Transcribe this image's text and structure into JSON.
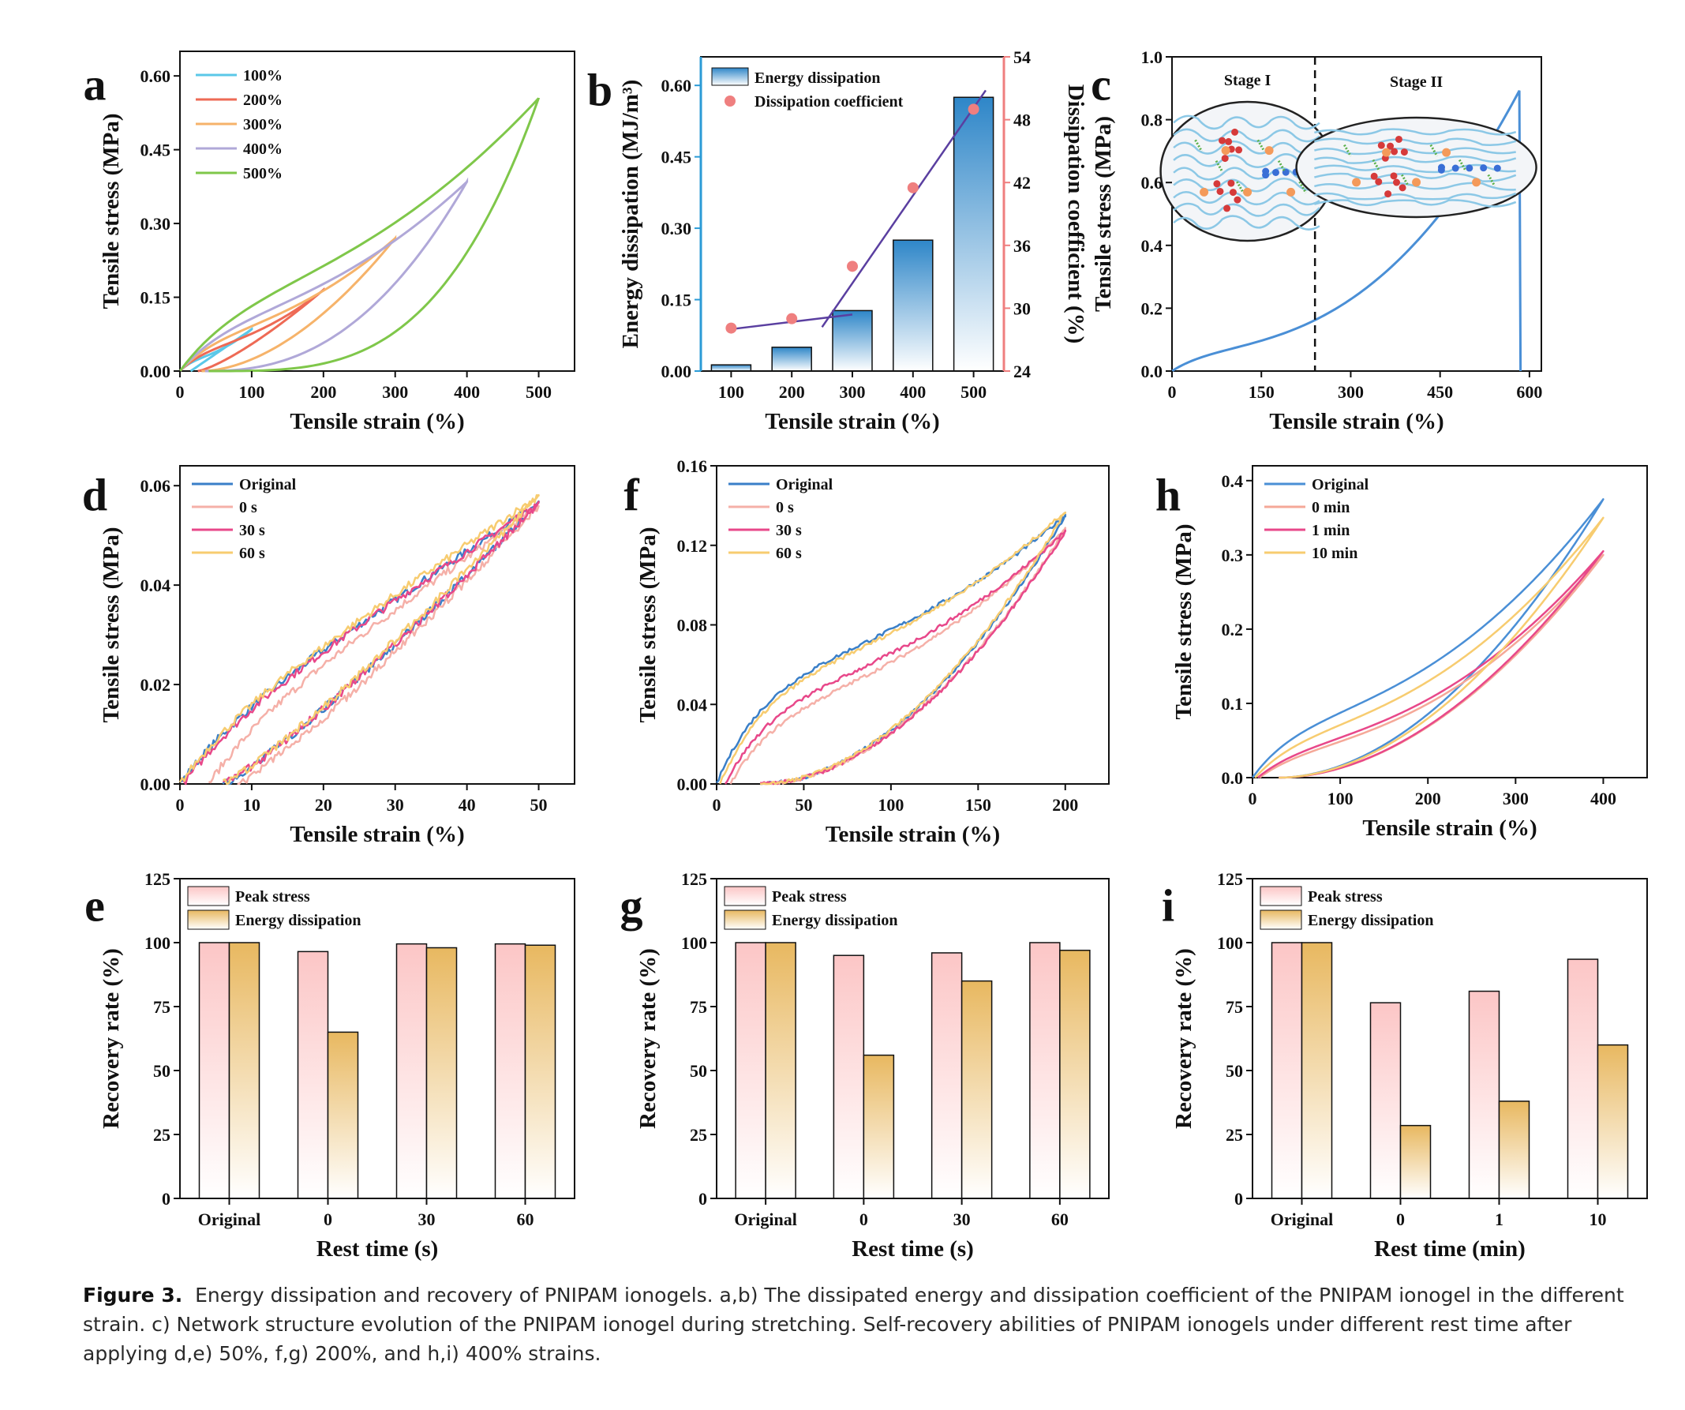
{
  "caption": {
    "label": "Figure 3.",
    "text": "Energy dissipation and recovery of PNIPAM ionogels. a,b) The dissipated energy and dissipation coefficient of the PNIPAM ionogel in the different strain. c) Network structure evolution of the PNIPAM ionogel during stretching. Self-recovery abilities of PNIPAM ionogels under different rest time after applying d,e) 50%, f,g) 200%, and h,i) 400% strains."
  },
  "chart_data": [
    {
      "panel": "a",
      "type": "line",
      "xlabel": "Tensile strain (%)",
      "ylabel": "Tensile stress (MPa)",
      "xlim": [
        0,
        550
      ],
      "ylim": [
        0,
        0.65
      ],
      "xticks": [
        0,
        100,
        200,
        300,
        400,
        500
      ],
      "yticks": [
        0.0,
        0.15,
        0.3,
        0.45,
        0.6
      ],
      "ytick_labels": [
        "0.00",
        "0.15",
        "0.30",
        "0.45",
        "0.60"
      ],
      "legend_position": "top-left",
      "series": [
        {
          "name": "100%",
          "color": "#5bc8e8",
          "max_strain": 100,
          "peak": 0.085,
          "residual": 15,
          "exp": 1.0
        },
        {
          "name": "200%",
          "color": "#ee6a55",
          "max_strain": 200,
          "peak": 0.165,
          "residual": 25,
          "exp": 1.3
        },
        {
          "name": "300%",
          "color": "#f6b36a",
          "max_strain": 300,
          "peak": 0.27,
          "residual": 30,
          "exp": 1.8
        },
        {
          "name": "400%",
          "color": "#b0a8d8",
          "max_strain": 400,
          "peak": 0.385,
          "residual": 35,
          "exp": 2.4
        },
        {
          "name": "500%",
          "color": "#7fc74a",
          "max_strain": 500,
          "peak": 0.555,
          "residual": 40,
          "exp": 3.4
        }
      ]
    },
    {
      "panel": "b",
      "type": "bar",
      "xlabel": "Tensile strain (%)",
      "ylabel": "Energy dissipation (MJ/m³)",
      "ylabel_right": "Dissipation coefficient (%)",
      "categories": [
        "100",
        "200",
        "300",
        "400",
        "500"
      ],
      "series": [
        {
          "name": "Energy dissipation",
          "axis": "left",
          "values": [
            0.013,
            0.05,
            0.127,
            0.275,
            0.575
          ]
        },
        {
          "name": "Dissipation coefficient",
          "axis": "right",
          "values": [
            28.1,
            29.0,
            34.0,
            41.5,
            49.0
          ]
        }
      ],
      "ylim": [
        0,
        0.66
      ],
      "ylim_right": [
        24,
        54
      ],
      "yticks": [
        0.0,
        0.15,
        0.3,
        0.45,
        0.6
      ],
      "ytick_labels": [
        "0.00",
        "0.15",
        "0.30",
        "0.45",
        "0.60"
      ],
      "yticks_right": [
        24,
        30,
        36,
        42,
        48,
        54
      ],
      "fit_lines": [
        {
          "x": [
            100,
            300
          ],
          "y": [
            28.0,
            29.4
          ]
        },
        {
          "x": [
            250,
            520
          ],
          "y": [
            28.2,
            50.8
          ]
        }
      ],
      "colors": {
        "bar": "#2e86c8",
        "dot": "#ef7f7f",
        "line": "#5a3fa0",
        "left_axis": "#2b9bd6",
        "right_axis": "#ef7f7f"
      }
    },
    {
      "panel": "c",
      "type": "line",
      "xlabel": "Tensile strain (%)",
      "ylabel": "Tensile stress (MPa)",
      "xlim": [
        0,
        620
      ],
      "ylim": [
        0,
        1.0
      ],
      "xticks": [
        0,
        150,
        300,
        450,
        600
      ],
      "yticks": [
        0.0,
        0.2,
        0.4,
        0.6,
        0.8,
        1.0
      ],
      "series": [
        {
          "name": "",
          "color": "#4a8fd6",
          "break_strain": 583,
          "peak": 0.85
        }
      ],
      "annotations": [
        "Stage I",
        "Stage II"
      ],
      "stage_divider_strain": 240
    },
    {
      "panel": "d",
      "type": "line",
      "xlabel": "Tensile strain (%)",
      "ylabel": "Tensile stress (MPa)",
      "xlim": [
        0,
        55
      ],
      "ylim": [
        0,
        0.064
      ],
      "xticks": [
        0,
        10,
        20,
        30,
        40,
        50
      ],
      "yticks": [
        0.0,
        0.02,
        0.04,
        0.06
      ],
      "ytick_labels": [
        "0.00",
        "0.02",
        "0.04",
        "0.06"
      ],
      "legend_position": "top-left",
      "series": [
        {
          "name": "Original",
          "color": "#3a7fc8",
          "peak": 0.0565,
          "residual": 6,
          "offset": 0
        },
        {
          "name": "0 s",
          "color": "#f5b0a8",
          "peak": 0.056,
          "residual": 8,
          "offset": 4
        },
        {
          "name": "30 s",
          "color": "#e8488a",
          "peak": 0.0565,
          "residual": 6,
          "offset": 0.5
        },
        {
          "name": "60 s",
          "color": "#f7cc70",
          "peak": 0.058,
          "residual": 6,
          "offset": 0
        }
      ]
    },
    {
      "panel": "f",
      "type": "line",
      "xlabel": "Tensile strain (%)",
      "ylabel": "Tensile stress (MPa)",
      "xlim": [
        0,
        225
      ],
      "ylim": [
        0,
        0.16
      ],
      "xticks": [
        0,
        50,
        100,
        150,
        200
      ],
      "yticks": [
        0.0,
        0.04,
        0.08,
        0.12,
        0.16
      ],
      "ytick_labels": [
        "0.00",
        "0.04",
        "0.08",
        "0.12",
        "0.16"
      ],
      "legend_position": "top-left",
      "series": [
        {
          "name": "Original",
          "color": "#3a7fc8",
          "peak": 0.135,
          "residual": 25,
          "offset": 0,
          "k": 1.0
        },
        {
          "name": "0 s",
          "color": "#f5b0a8",
          "peak": 0.128,
          "residual": 25,
          "offset": 8,
          "k": 0.75
        },
        {
          "name": "30 s",
          "color": "#e8488a",
          "peak": 0.127,
          "residual": 25,
          "offset": 5,
          "k": 0.85
        },
        {
          "name": "60 s",
          "color": "#f7cc70",
          "peak": 0.137,
          "residual": 25,
          "offset": 2,
          "k": 0.95
        }
      ]
    },
    {
      "panel": "h",
      "type": "line",
      "xlabel": "Tensile strain (%)",
      "ylabel": "Tensile stress (MPa)",
      "xlim": [
        0,
        450
      ],
      "ylim": [
        0,
        0.42
      ],
      "xticks": [
        0,
        100,
        200,
        300,
        400
      ],
      "yticks": [
        0.0,
        0.1,
        0.2,
        0.3,
        0.4
      ],
      "legend_position": "top-left",
      "series": [
        {
          "name": "Original",
          "color": "#4a8fd6",
          "peak": 0.375,
          "residual": 30,
          "offset": 0,
          "k": 1.0
        },
        {
          "name": "0 min",
          "color": "#f5a898",
          "peak": 0.3,
          "residual": 30,
          "offset": 8,
          "k": 0.65
        },
        {
          "name": "1 min",
          "color": "#e8488a",
          "peak": 0.305,
          "residual": 30,
          "offset": 6,
          "k": 0.72
        },
        {
          "name": "10 min",
          "color": "#f7cc70",
          "peak": 0.35,
          "residual": 30,
          "offset": 3,
          "k": 0.85
        }
      ]
    },
    {
      "panel": "e",
      "type": "bar",
      "xlabel": "Rest time (s)",
      "ylabel": "Recovery rate (%)",
      "categories": [
        "Original",
        "0",
        "30",
        "60"
      ],
      "ylim": [
        0,
        125
      ],
      "yticks": [
        0,
        25,
        50,
        75,
        100,
        125
      ],
      "series": [
        {
          "name": "Peak stress",
          "values": [
            100,
            96.5,
            99.5,
            99.5
          ]
        },
        {
          "name": "Energy dissipation",
          "values": [
            100,
            65,
            98,
            99
          ]
        }
      ]
    },
    {
      "panel": "g",
      "type": "bar",
      "xlabel": "Rest time (s)",
      "ylabel": "Recovery rate (%)",
      "categories": [
        "Original",
        "0",
        "30",
        "60"
      ],
      "ylim": [
        0,
        125
      ],
      "yticks": [
        0,
        25,
        50,
        75,
        100,
        125
      ],
      "series": [
        {
          "name": "Peak stress",
          "values": [
            100,
            95,
            96,
            100
          ]
        },
        {
          "name": "Energy dissipation",
          "values": [
            100,
            56,
            85,
            97
          ]
        }
      ]
    },
    {
      "panel": "i",
      "type": "bar",
      "xlabel": "Rest time (min)",
      "ylabel": "Recovery rate (%)",
      "categories": [
        "Original",
        "0",
        "1",
        "10"
      ],
      "ylim": [
        0,
        125
      ],
      "yticks": [
        0,
        25,
        50,
        75,
        100,
        125
      ],
      "series": [
        {
          "name": "Peak stress",
          "values": [
            100,
            76.5,
            81,
            93.5
          ]
        },
        {
          "name": "Energy dissipation",
          "values": [
            100,
            28.5,
            38,
            60
          ]
        }
      ]
    }
  ]
}
